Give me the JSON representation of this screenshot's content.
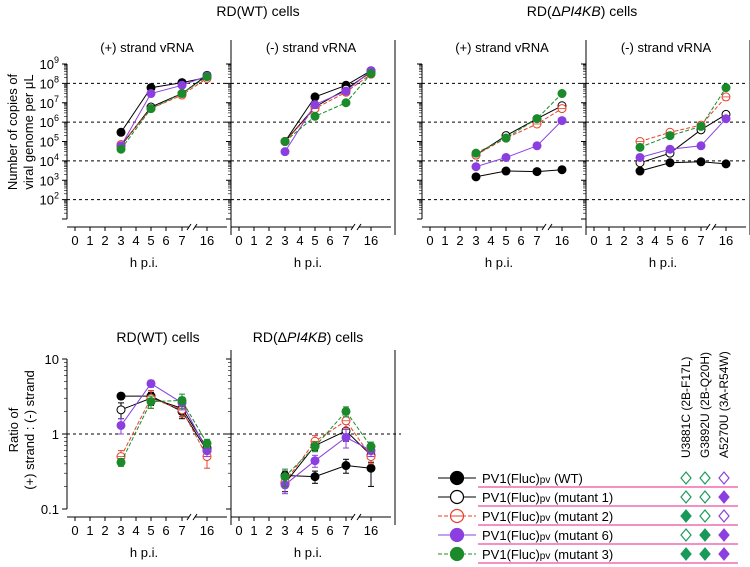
{
  "colors": {
    "wt": "#000000",
    "mutant1": "#000000",
    "mutant2": "#e8402a",
    "mutant6": "#8c3fe0",
    "mutant3": "#1a8a2a",
    "minus_title": "#e8208a",
    "mutation_green": "#1a9a5a",
    "mutation_purple": "#8c3fe0",
    "legend_rule": "#e8208a"
  },
  "x_axis": {
    "label": "h p.i.",
    "ticks": [
      "0",
      "1",
      "2",
      "3",
      "4",
      "5",
      "6",
      "7",
      "16"
    ]
  },
  "chart_data": [
    {
      "type": "line",
      "panel": "top",
      "cell_title": "RD(WT) cells",
      "strand_title": "(+) strand vRNA",
      "strand_color": "#000000",
      "ylabel": "Number of copies of viral genome per μL",
      "yscale": "log",
      "ylim": [
        10,
        1000000000
      ],
      "y_ticks": [
        2,
        3,
        4,
        5,
        6,
        7,
        8,
        9
      ],
      "reference_lines": [
        100000000,
        1000000,
        10000,
        100
      ],
      "x": [
        3,
        5,
        7,
        16
      ],
      "series": [
        {
          "name": "PV1(Fluc)pv (WT)",
          "values": [
            300000,
            60000000,
            110000000,
            200000000
          ]
        },
        {
          "name": "PV1(Fluc)pv (mutant 1)",
          "values": [
            60000,
            6000000,
            30000000,
            260000000
          ]
        },
        {
          "name": "PV1(Fluc)pv (mutant 2)",
          "values": [
            70000,
            5000000,
            25000000,
            180000000
          ]
        },
        {
          "name": "PV1(Fluc)pv (mutant 6)",
          "values": [
            60000,
            30000000,
            80000000,
            240000000
          ]
        },
        {
          "name": "PV1(Fluc)pv (mutant 3)",
          "values": [
            40000,
            5000000,
            30000000,
            220000000
          ]
        }
      ]
    },
    {
      "type": "line",
      "panel": "top",
      "cell_title": "RD(WT) cells",
      "strand_title": "(-) strand vRNA",
      "strand_color": "#e8208a",
      "yscale": "log",
      "ylim": [
        10,
        1000000000
      ],
      "reference_lines": [
        100000000,
        1000000,
        10000,
        100
      ],
      "x": [
        3,
        5,
        7,
        16
      ],
      "series": [
        {
          "name": "PV1(Fluc)pv (WT)",
          "values": [
            100000,
            20000000,
            80000000,
            450000000
          ]
        },
        {
          "name": "PV1(Fluc)pv (mutant 1)",
          "values": [
            100000,
            6000000,
            50000000,
            380000000
          ]
        },
        {
          "name": "PV1(Fluc)pv (mutant 2)",
          "values": [
            100000,
            5000000,
            35000000,
            300000000
          ]
        },
        {
          "name": "PV1(Fluc)pv (mutant 6)",
          "values": [
            30000,
            8000000,
            40000000,
            450000000
          ]
        },
        {
          "name": "PV1(Fluc)pv (mutant 3)",
          "values": [
            100000,
            2000000,
            10000000,
            320000000
          ]
        }
      ]
    },
    {
      "type": "line",
      "panel": "top",
      "cell_title": "RD(ΔPI4KB) cells",
      "strand_title": "(+) strand vRNA",
      "strand_color": "#000000",
      "yscale": "log",
      "ylim": [
        10,
        1000000000
      ],
      "reference_lines": [
        100000000,
        1000000,
        10000,
        100
      ],
      "x": [
        3,
        5,
        7,
        16
      ],
      "series": [
        {
          "name": "PV1(Fluc)pv (WT)",
          "values": [
            1500,
            3000,
            2800,
            3500
          ]
        },
        {
          "name": "PV1(Fluc)pv (mutant 1)",
          "values": [
            20000,
            200000,
            1500000,
            7000000
          ]
        },
        {
          "name": "PV1(Fluc)pv (mutant 2)",
          "values": [
            20000,
            150000,
            800000,
            5000000
          ]
        },
        {
          "name": "PV1(Fluc)pv (mutant 6)",
          "values": [
            5000,
            15000,
            60000,
            1200000
          ]
        },
        {
          "name": "PV1(Fluc)pv (mutant 3)",
          "values": [
            25000,
            150000,
            1500000,
            30000000
          ]
        }
      ]
    },
    {
      "type": "line",
      "panel": "top",
      "cell_title": "RD(ΔPI4KB) cells",
      "strand_title": "(-) strand vRNA",
      "strand_color": "#e8208a",
      "yscale": "log",
      "ylim": [
        10,
        1000000000
      ],
      "reference_lines": [
        100000000,
        1000000,
        10000,
        100
      ],
      "x": [
        3,
        5,
        7,
        16
      ],
      "series": [
        {
          "name": "PV1(Fluc)pv (WT)",
          "values": [
            3000,
            8000,
            9000,
            7000
          ]
        },
        {
          "name": "PV1(Fluc)pv (mutant 1)",
          "values": [
            8000,
            25000,
            400000,
            2500000
          ]
        },
        {
          "name": "PV1(Fluc)pv (mutant 2)",
          "values": [
            100000,
            300000,
            700000,
            20000000
          ]
        },
        {
          "name": "PV1(Fluc)pv (mutant 6)",
          "values": [
            15000,
            40000,
            60000,
            1500000
          ]
        },
        {
          "name": "PV1(Fluc)pv (mutant 3)",
          "values": [
            50000,
            200000,
            600000,
            60000000
          ]
        }
      ]
    },
    {
      "type": "line",
      "panel": "bottom",
      "cell_title": "RD(WT) cells",
      "ylabel": "Ratio of (+) strand : (-) strand",
      "yscale": "log",
      "ylim": [
        0.1,
        10
      ],
      "y_ticks": [
        "0.1",
        "1",
        "10"
      ],
      "reference_lines": [
        1
      ],
      "x": [
        3,
        5,
        7,
        16
      ],
      "series": [
        {
          "name": "PV1(Fluc)pv (WT)",
          "values": [
            3.2,
            3.2,
            2.0,
            0.6
          ],
          "errors": [
            0.3,
            0.6,
            0.4,
            0.1
          ]
        },
        {
          "name": "PV1(Fluc)pv (mutant 1)",
          "values": [
            2.1,
            3.0,
            2.2,
            0.65
          ],
          "errors": [
            0.5,
            0.6,
            0.5,
            0.1
          ]
        },
        {
          "name": "PV1(Fluc)pv (mutant 2)",
          "values": [
            0.5,
            3.0,
            2.1,
            0.5
          ],
          "errors": [
            0.1,
            0.8,
            0.4,
            0.15
          ]
        },
        {
          "name": "PV1(Fluc)pv (mutant 6)",
          "values": [
            1.3,
            4.7,
            2.6,
            0.6
          ],
          "errors": [
            0.3,
            0.5,
            0.5,
            0.1
          ]
        },
        {
          "name": "PV1(Fluc)pv (mutant 3)",
          "values": [
            0.42,
            2.7,
            2.8,
            0.75
          ],
          "errors": [
            0.05,
            0.5,
            0.6,
            0.1
          ]
        }
      ]
    },
    {
      "type": "line",
      "panel": "bottom",
      "cell_title": "RD(ΔPI4KB) cells",
      "yscale": "log",
      "ylim": [
        0.1,
        10
      ],
      "reference_lines": [
        1
      ],
      "x": [
        3,
        5,
        7,
        16
      ],
      "series": [
        {
          "name": "PV1(Fluc)pv (WT)",
          "values": [
            0.28,
            0.27,
            0.38,
            0.35
          ],
          "errors": [
            0.04,
            0.05,
            0.08,
            0.15
          ]
        },
        {
          "name": "PV1(Fluc)pv (mutant 1)",
          "values": [
            0.22,
            0.7,
            1.1,
            0.52
          ],
          "errors": [
            0.05,
            0.1,
            0.3,
            0.1
          ]
        },
        {
          "name": "PV1(Fluc)pv (mutant 2)",
          "values": [
            0.23,
            0.8,
            1.5,
            0.5
          ],
          "errors": [
            0.04,
            0.15,
            0.3,
            0.1
          ]
        },
        {
          "name": "PV1(Fluc)pv (mutant 6)",
          "values": [
            0.21,
            0.44,
            0.9,
            0.6
          ],
          "errors": [
            0.05,
            0.08,
            0.25,
            0.1
          ]
        },
        {
          "name": "PV1(Fluc)pv (mutant 3)",
          "values": [
            0.27,
            0.68,
            2.0,
            0.68
          ],
          "errors": [
            0.07,
            0.1,
            0.3,
            0.1
          ]
        }
      ]
    }
  ],
  "legend": {
    "mutation_headers": [
      {
        "label": "U3881C (2B-F17L)",
        "color": "#1a9a5a"
      },
      {
        "label": "G3892U (2B-Q20H)",
        "color": "#1a9a5a"
      },
      {
        "label": "A5270U (3A-R54W)",
        "color": "#8c3fe0"
      }
    ],
    "rows": [
      {
        "label": "PV1(Fluc)pv (WT)",
        "series_key": "wt",
        "marker": "filled",
        "mutations": [
          false,
          false,
          false
        ]
      },
      {
        "label": "PV1(Fluc)pv (mutant 1)",
        "series_key": "mutant1",
        "marker": "open",
        "mutations": [
          false,
          false,
          true
        ]
      },
      {
        "label": "PV1(Fluc)pv (mutant 2)",
        "series_key": "mutant2",
        "marker": "open",
        "mutations": [
          true,
          false,
          false
        ]
      },
      {
        "label": "PV1(Fluc)pv (mutant 6)",
        "series_key": "mutant6",
        "marker": "filled",
        "mutations": [
          false,
          true,
          true
        ]
      },
      {
        "label": "PV1(Fluc)pv (mutant 3)",
        "series_key": "mutant3",
        "marker": "filled",
        "mutations": [
          true,
          true,
          true
        ]
      }
    ]
  }
}
